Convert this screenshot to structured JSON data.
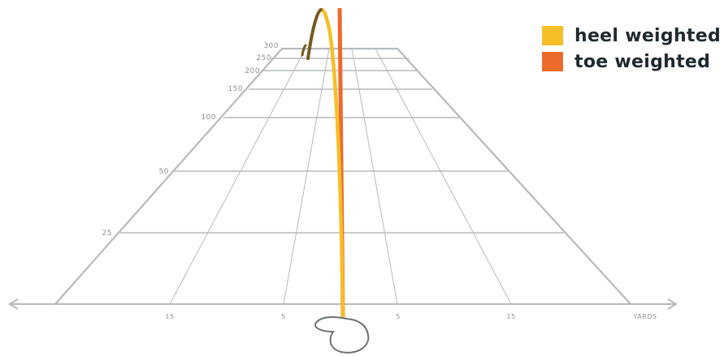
{
  "legend": {
    "items": [
      {
        "label": "heel weighted",
        "color": "#f6be27"
      },
      {
        "label": "toe weighted",
        "color": "#ee6a2b"
      }
    ]
  },
  "distance_labels": [
    "300",
    "250",
    "200",
    "150",
    "100",
    "50",
    "25"
  ],
  "axis_labels": [
    "15",
    "5",
    "5",
    "15",
    "YARDS"
  ],
  "colors": {
    "grid": "#b5babe",
    "label": "#8a9096",
    "heel": "#f6be27",
    "heel_dark": "#7a5a22",
    "toe": "#ee6a2b",
    "club": "#6b7177"
  },
  "icons": {
    "club_head": "golf-club-head-icon",
    "axis_arrows": "double-arrow-axis"
  }
}
